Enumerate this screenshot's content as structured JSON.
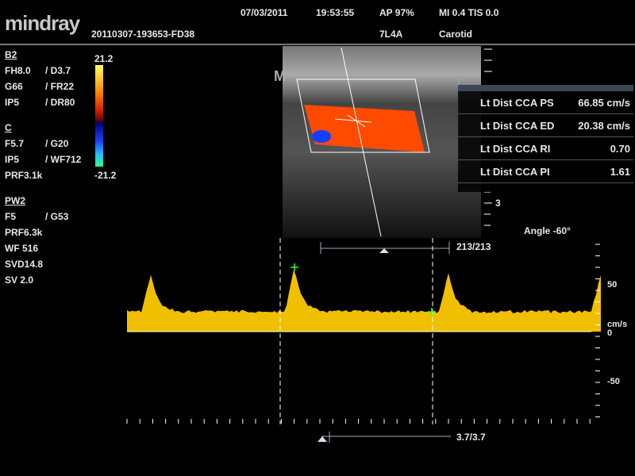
{
  "header": {
    "logo": "mindray",
    "file_id": "20110307-193653-FD38",
    "date": "07/03/2011",
    "time": "19:53:55",
    "ap": "AP  97%",
    "mi_tis": "MI 0.4  TIS 0.0",
    "probe": "7L4A",
    "preset": "Carotid"
  },
  "params": {
    "b_mode": {
      "title": "B2",
      "rows": [
        [
          "FH8.0",
          "/ D3.7"
        ],
        [
          "G66",
          "/ FR22"
        ],
        [
          "IP5",
          "/ DR80"
        ]
      ]
    },
    "color": {
      "title": "C",
      "rows": [
        [
          "F5.7",
          "/ G20"
        ],
        [
          "IP5",
          "/ WF712"
        ],
        [
          "PRF3.1k",
          ""
        ]
      ]
    },
    "pw": {
      "title": "PW2",
      "rows": [
        [
          "F5",
          "/ G53"
        ],
        [
          "PRF6.3k",
          ""
        ],
        [
          "WF 516",
          ""
        ],
        [
          "SVD14.8",
          ""
        ],
        [
          "SV 2.0",
          ""
        ]
      ]
    }
  },
  "color_scale": {
    "max": "21.2",
    "min": "-21.2"
  },
  "marker": "M",
  "measurements": [
    {
      "label": "Lt Dist CCA PS",
      "value": "66.85 cm/s"
    },
    {
      "label": "Lt Dist CCA ED",
      "value": "20.38 cm/s"
    },
    {
      "label": "Lt Dist CCA RI",
      "value": "0.70"
    },
    {
      "label": "Lt Dist CCA PI",
      "value": "1.61"
    }
  ],
  "depth_label": "3",
  "angle": "Angle -60°",
  "frame_counter": "213/213",
  "doppler_scale": {
    "labels": [
      "50",
      "cm/s",
      "0",
      "-50"
    ]
  },
  "cine_counter": "3.7/3.7",
  "colors": {
    "doppler": "#f0c000",
    "flow_red": "#ff4000",
    "flow_blue": "#1040ff"
  }
}
